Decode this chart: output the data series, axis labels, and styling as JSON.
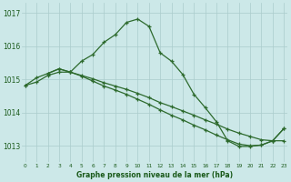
{
  "line1_x": [
    0,
    1,
    2,
    3,
    4,
    5,
    6,
    7,
    8,
    9,
    10,
    11,
    12,
    13,
    14,
    15,
    16,
    17,
    18,
    19,
    20,
    21,
    22,
    23
  ],
  "line1_y": [
    1014.82,
    1014.92,
    1015.12,
    1015.22,
    1015.22,
    1015.12,
    1015.02,
    1014.9,
    1014.8,
    1014.7,
    1014.58,
    1014.45,
    1014.3,
    1014.18,
    1014.05,
    1013.92,
    1013.78,
    1013.65,
    1013.5,
    1013.38,
    1013.28,
    1013.18,
    1013.15,
    1013.15
  ],
  "line2_x": [
    0,
    1,
    2,
    3,
    4,
    5,
    6,
    7,
    8,
    9,
    10,
    11,
    12,
    13,
    14,
    15,
    16,
    17,
    18,
    19,
    20,
    21,
    22,
    23
  ],
  "line2_y": [
    1014.82,
    1015.05,
    1015.18,
    1015.32,
    1015.22,
    1015.55,
    1015.75,
    1016.12,
    1016.35,
    1016.72,
    1016.82,
    1016.6,
    1015.8,
    1015.55,
    1015.15,
    1014.55,
    1014.15,
    1013.72,
    1013.15,
    1012.98,
    1012.98,
    1013.02,
    1013.15,
    1013.52
  ],
  "line3_x": [
    2,
    3,
    4,
    5,
    6,
    7,
    8,
    9,
    10,
    11,
    12,
    13,
    14,
    15,
    16,
    17,
    18,
    19,
    20,
    21,
    22,
    23
  ],
  "line3_y": [
    1015.18,
    1015.32,
    1015.22,
    1015.1,
    1014.95,
    1014.8,
    1014.68,
    1014.55,
    1014.4,
    1014.25,
    1014.08,
    1013.92,
    1013.78,
    1013.62,
    1013.48,
    1013.32,
    1013.18,
    1013.05,
    1013.0,
    1013.02,
    1013.15,
    1013.52
  ],
  "line_color": "#2d6a2d",
  "linewidth": 0.9,
  "marker": "+",
  "markersize": 3.5,
  "markeredgewidth": 0.9,
  "background_color": "#cce8e8",
  "plot_bg": "#cce8e8",
  "grid_color": "#aacccc",
  "ylim": [
    1012.5,
    1017.3
  ],
  "xlim": [
    -0.3,
    23.3
  ],
  "yticks": [
    1013,
    1014,
    1015,
    1016,
    1017
  ],
  "xticks": [
    0,
    1,
    2,
    3,
    4,
    5,
    6,
    7,
    8,
    9,
    10,
    11,
    12,
    13,
    14,
    15,
    16,
    17,
    18,
    19,
    20,
    21,
    22,
    23
  ],
  "xlabel": "Graphe pression niveau de la mer (hPa)",
  "tick_color": "#1a5a1a",
  "label_fontsize": 5.5,
  "xtick_fontsize": 4.2,
  "ytick_fontsize": 5.5,
  "xlabel_fontsize": 5.5
}
